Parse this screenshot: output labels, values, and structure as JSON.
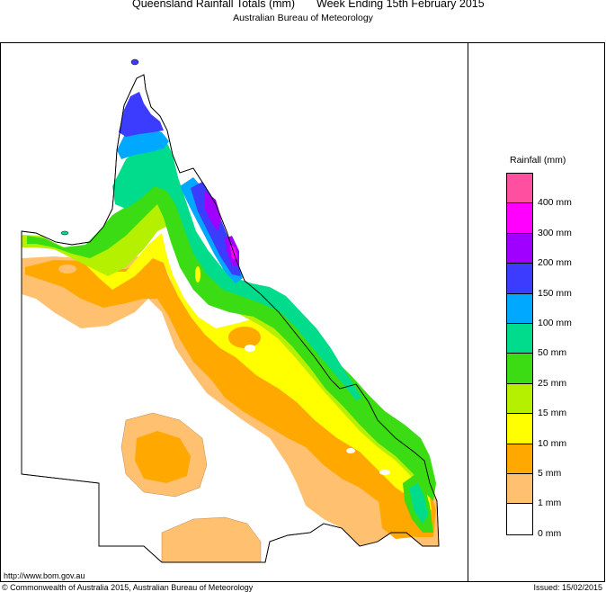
{
  "header": {
    "title": "Queensland Rainfall Totals (mm)",
    "period": "Week Ending 15th February 2015",
    "subtitle": "Australian Bureau of Meteorology"
  },
  "legend": {
    "title": "Rainfall (mm)",
    "bins": [
      {
        "label": "400 mm",
        "color": "#ff4fa0"
      },
      {
        "label": "300 mm",
        "color": "#ff00ff"
      },
      {
        "label": "200 mm",
        "color": "#a000ff"
      },
      {
        "label": "150 mm",
        "color": "#3c3cff"
      },
      {
        "label": "100 mm",
        "color": "#00a8ff"
      },
      {
        "label": "50 mm",
        "color": "#00dc8c"
      },
      {
        "label": "25 mm",
        "color": "#3cdc14"
      },
      {
        "label": "15 mm",
        "color": "#b4f000"
      },
      {
        "label": "10 mm",
        "color": "#ffff00"
      },
      {
        "label": "5 mm",
        "color": "#ffa800"
      },
      {
        "label": "1 mm",
        "color": "#ffc070"
      },
      {
        "label": "0 mm",
        "color": "#ffffff"
      }
    ]
  },
  "footer": {
    "url": "http://www.bom.gov.au",
    "copyright": "© Commonwealth of Australia 2015, Australian Bureau of Meteorology",
    "issued": "Issued: 15/02/2015"
  }
}
